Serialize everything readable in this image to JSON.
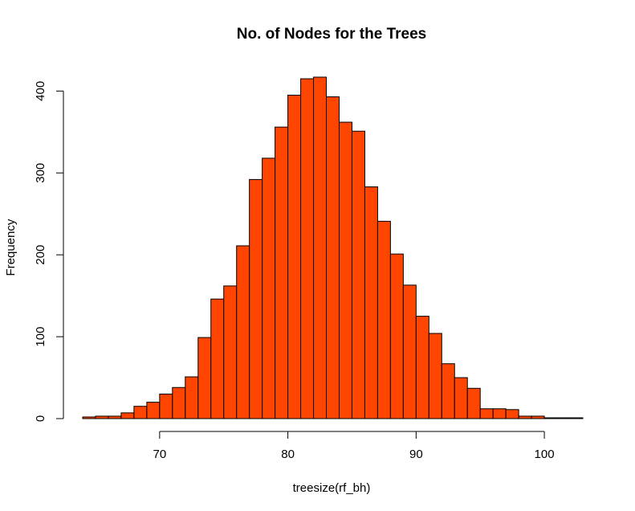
{
  "chart_data": {
    "type": "bar",
    "title": "No. of Nodes for the Trees",
    "xlabel": "treesize(rf_bh)",
    "ylabel": "Frequency",
    "bar_color": "#FF4500",
    "border_color": "#000000",
    "bin_width": 1,
    "x_bins": [
      64,
      65,
      66,
      67,
      68,
      69,
      70,
      71,
      72,
      73,
      74,
      75,
      76,
      77,
      78,
      79,
      80,
      81,
      82,
      83,
      84,
      85,
      86,
      87,
      88,
      89,
      90,
      91,
      92,
      93,
      94,
      95,
      96,
      97,
      98,
      99,
      100,
      101,
      102
    ],
    "values": [
      2,
      3,
      3,
      7,
      15,
      20,
      30,
      38,
      51,
      99,
      146,
      162,
      211,
      292,
      318,
      356,
      395,
      415,
      417,
      393,
      362,
      351,
      283,
      241,
      201,
      163,
      125,
      104,
      67,
      50,
      37,
      12,
      12,
      11,
      3,
      3,
      1,
      1,
      1
    ],
    "xlim": [
      64,
      103
    ],
    "ylim": [
      0,
      417
    ],
    "xticks": [
      70,
      80,
      90,
      100
    ],
    "yticks": [
      0,
      100,
      200,
      300,
      400
    ],
    "grid": false,
    "legend": "none"
  }
}
